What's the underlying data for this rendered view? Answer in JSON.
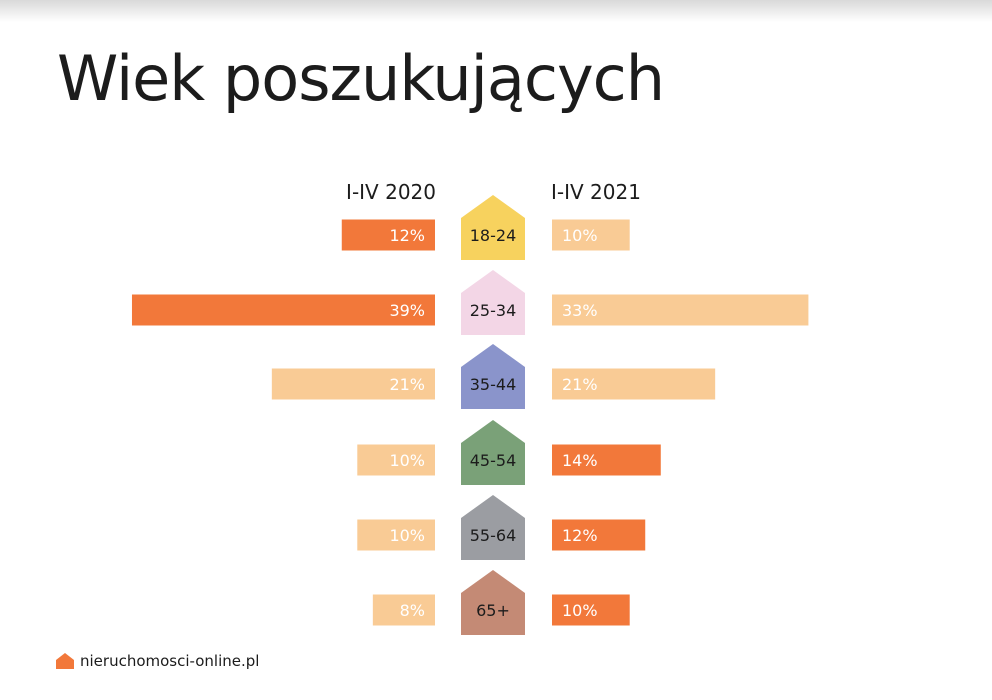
{
  "title": "Wiek poszukujących",
  "footer": {
    "brand": "nieruchomosci-online.pl",
    "icon": "house-icon"
  },
  "colors": {
    "highlight": "#f2783a",
    "light": "#f9cb95",
    "label_dark": "#1c1c1c",
    "label_light": "#ffffff"
  },
  "chart_data": {
    "type": "bar",
    "subtype": "butterfly",
    "series": [
      {
        "name": "I-IV 2020",
        "values": [
          12,
          39,
          21,
          10,
          10,
          8
        ]
      },
      {
        "name": "I-IV 2021",
        "values": [
          10,
          33,
          21,
          14,
          12,
          10
        ]
      }
    ],
    "categories": [
      "18-24",
      "25-34",
      "35-44",
      "45-54",
      "55-64",
      "65+"
    ],
    "data_labels": [
      [
        "12%",
        "39%",
        "21%",
        "10%",
        "10%",
        "8%"
      ],
      [
        "10%",
        "33%",
        "21%",
        "14%",
        "12%",
        "10%"
      ]
    ],
    "highlight": [
      [
        true,
        true,
        false,
        false,
        false,
        false
      ],
      [
        false,
        false,
        false,
        true,
        true,
        true
      ]
    ],
    "category_colors": [
      "#f7d25e",
      "#f3d6e6",
      "#8a94cb",
      "#7aa178",
      "#9b9da2",
      "#c48a75"
    ],
    "unit": "%"
  }
}
